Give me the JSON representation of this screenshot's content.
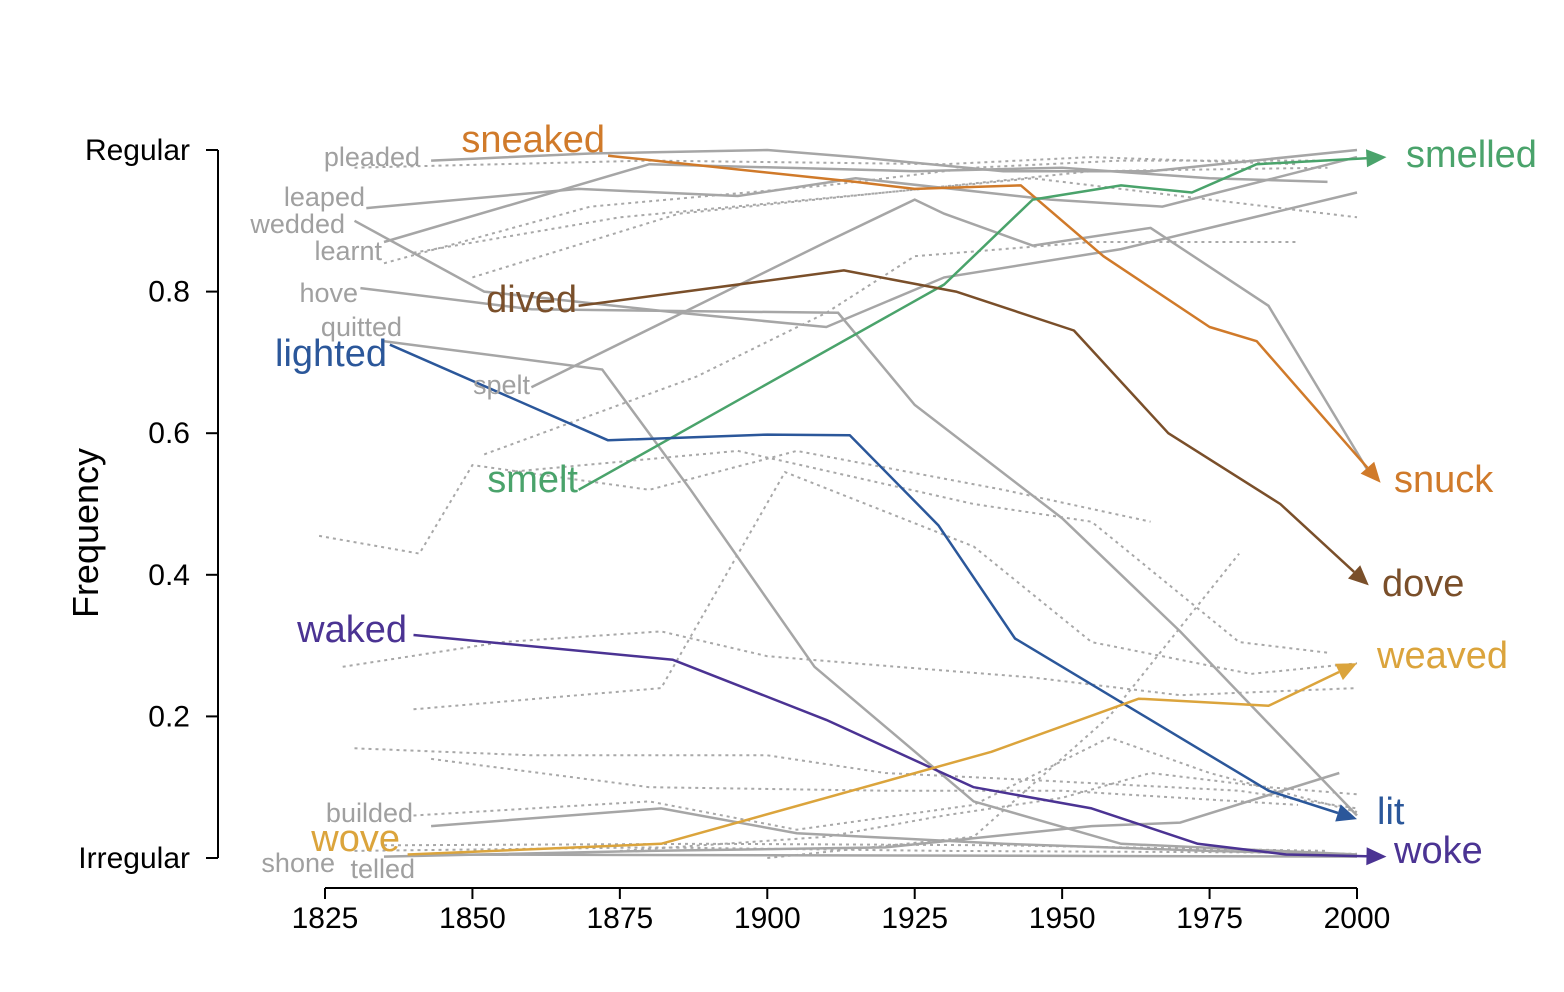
{
  "chart_data": {
    "type": "line",
    "title": "",
    "xlabel": "",
    "ylabel": "Frequency",
    "xlim": [
      1825,
      2000
    ],
    "ylim": [
      0,
      1
    ],
    "x_ticks": [
      "1825",
      "1850",
      "1875",
      "1900",
      "1925",
      "1950",
      "1975",
      "2000"
    ],
    "y_ticks": [
      {
        "value": 0,
        "label": "Irregular"
      },
      {
        "value": 0.2,
        "label": "0.2"
      },
      {
        "value": 0.4,
        "label": "0.4"
      },
      {
        "value": 0.6,
        "label": "0.6"
      },
      {
        "value": 0.8,
        "label": "0.8"
      },
      {
        "value": 1,
        "label": "Regular"
      }
    ],
    "grid": false,
    "legend": "none",
    "highlighted_series": [
      {
        "start_label": "sneaked",
        "end_label": "snuck",
        "color": "#d07a2a",
        "points": [
          [
            1873,
            0.992
          ],
          [
            1915,
            0.955
          ],
          [
            1925,
            0.945
          ],
          [
            1943,
            0.95
          ],
          [
            1957,
            0.85
          ],
          [
            1975,
            0.75
          ],
          [
            1983,
            0.73
          ],
          [
            2004,
            0.53
          ]
        ]
      },
      {
        "start_label": "smelt",
        "end_label": "smelled",
        "color": "#4aa36b",
        "points": [
          [
            1868,
            0.52
          ],
          [
            1930,
            0.81
          ],
          [
            1945,
            0.93
          ],
          [
            1960,
            0.95
          ],
          [
            1972,
            0.94
          ],
          [
            1983,
            0.98
          ],
          [
            2005,
            0.99
          ]
        ]
      },
      {
        "start_label": "dived",
        "end_label": "dove",
        "color": "#7a4f2a",
        "points": [
          [
            1868,
            0.78
          ],
          [
            1913,
            0.83
          ],
          [
            1932,
            0.8
          ],
          [
            1952,
            0.745
          ],
          [
            1968,
            0.6
          ],
          [
            1987,
            0.5
          ],
          [
            2002,
            0.385
          ]
        ]
      },
      {
        "start_label": "lighted",
        "end_label": "lit",
        "color": "#2b579a",
        "points": [
          [
            1836,
            0.725
          ],
          [
            1873,
            0.59
          ],
          [
            1900,
            0.598
          ],
          [
            1914,
            0.597
          ],
          [
            1929,
            0.47
          ],
          [
            1942,
            0.31
          ],
          [
            1985,
            0.095
          ],
          [
            2000,
            0.055
          ]
        ]
      },
      {
        "start_label": "waked",
        "end_label": "woke",
        "color": "#4b3393",
        "points": [
          [
            1840,
            0.315
          ],
          [
            1884,
            0.28
          ],
          [
            1910,
            0.195
          ],
          [
            1935,
            0.1
          ],
          [
            1955,
            0.07
          ],
          [
            1973,
            0.02
          ],
          [
            1988,
            0.005
          ],
          [
            2005,
            0.002
          ]
        ]
      },
      {
        "start_label": "wove",
        "end_label": "weaved",
        "color": "#dba43c",
        "points": [
          [
            1839,
            0.005
          ],
          [
            1882,
            0.02
          ],
          [
            1938,
            0.15
          ],
          [
            1963,
            0.225
          ],
          [
            1985,
            0.215
          ],
          [
            2000,
            0.275
          ]
        ]
      }
    ],
    "solid_gray_series": [
      {
        "start_label": "pleaded",
        "points": [
          [
            1843,
            0.985
          ],
          [
            1870,
            0.995
          ],
          [
            1900,
            1.0
          ],
          [
            1915,
            0.99
          ],
          [
            1940,
            0.97
          ],
          [
            1965,
            0.97
          ],
          [
            2000,
            1.0
          ]
        ]
      },
      {
        "start_label": "leaped",
        "points": [
          [
            1832,
            0.918
          ],
          [
            1868,
            0.945
          ],
          [
            1895,
            0.935
          ],
          [
            1915,
            0.96
          ],
          [
            1948,
            0.93
          ],
          [
            1967,
            0.92
          ],
          [
            2000,
            0.99
          ]
        ]
      },
      {
        "start_label": "wedded",
        "points": [
          [
            1830,
            0.9
          ],
          [
            1852,
            0.8
          ],
          [
            1885,
            0.77
          ],
          [
            1910,
            0.75
          ],
          [
            1930,
            0.82
          ],
          [
            1960,
            0.86
          ],
          [
            1975,
            0.89
          ],
          [
            2000,
            0.94
          ]
        ]
      },
      {
        "start_label": "learnt",
        "points": [
          [
            1835,
            0.87
          ],
          [
            1880,
            0.98
          ],
          [
            1925,
            0.97
          ],
          [
            1950,
            0.975
          ],
          [
            1975,
            0.96
          ],
          [
            1995,
            0.955
          ]
        ]
      },
      {
        "start_label": "hove",
        "points": [
          [
            1831,
            0.805
          ],
          [
            1860,
            0.775
          ],
          [
            1912,
            0.77
          ],
          [
            1925,
            0.64
          ],
          [
            1950,
            0.48
          ],
          [
            1970,
            0.32
          ],
          [
            1985,
            0.19
          ],
          [
            2000,
            0.06
          ]
        ]
      },
      {
        "start_label": "quitted",
        "points": [
          [
            1835,
            0.73
          ],
          [
            1872,
            0.69
          ],
          [
            1887,
            0.52
          ],
          [
            1908,
            0.27
          ],
          [
            1935,
            0.08
          ],
          [
            1960,
            0.02
          ],
          [
            2000,
            0.005
          ]
        ]
      },
      {
        "start_label": "spelt",
        "points": [
          [
            1860,
            0.665
          ],
          [
            1910,
            0.87
          ],
          [
            1925,
            0.93
          ],
          [
            1930,
            0.91
          ],
          [
            1945,
            0.865
          ],
          [
            1965,
            0.89
          ],
          [
            1985,
            0.78
          ],
          [
            2002,
            0.545
          ]
        ]
      },
      {
        "start_label": "builded",
        "points": [
          [
            1843,
            0.045
          ],
          [
            1882,
            0.07
          ],
          [
            1905,
            0.035
          ],
          [
            1940,
            0.02
          ],
          [
            1975,
            0.01
          ],
          [
            2000,
            0.005
          ]
        ]
      },
      {
        "start_label": "shone",
        "points": [
          [
            1835,
            0.002
          ],
          [
            1880,
            0.01
          ],
          [
            1920,
            0.015
          ],
          [
            1955,
            0.045
          ],
          [
            1970,
            0.05
          ],
          [
            1997,
            0.12
          ]
        ]
      },
      {
        "start_label": "telled",
        "points": [
          [
            1840,
            0.005
          ],
          [
            1900,
            0.004
          ],
          [
            1950,
            0.003
          ],
          [
            2000,
            0.002
          ]
        ]
      }
    ],
    "dashed_gray_series": [
      {
        "points": [
          [
            1830,
            0.975
          ],
          [
            1880,
            0.985
          ],
          [
            1930,
            0.98
          ],
          [
            1955,
            0.99
          ],
          [
            1990,
            0.98
          ]
        ]
      },
      {
        "points": [
          [
            1835,
            0.84
          ],
          [
            1870,
            0.92
          ],
          [
            1910,
            0.95
          ],
          [
            1935,
            0.975
          ],
          [
            1960,
            0.985
          ],
          [
            1995,
            0.985
          ]
        ]
      },
      {
        "points": [
          [
            1840,
            0.855
          ],
          [
            1875,
            0.905
          ],
          [
            1920,
            0.94
          ],
          [
            1955,
            0.97
          ],
          [
            1995,
            0.975
          ]
        ]
      },
      {
        "points": [
          [
            1850,
            0.82
          ],
          [
            1885,
            0.91
          ],
          [
            1920,
            0.94
          ],
          [
            1945,
            0.96
          ],
          [
            2000,
            0.905
          ]
        ]
      },
      {
        "points": [
          [
            1852,
            0.57
          ],
          [
            1888,
            0.68
          ],
          [
            1910,
            0.77
          ],
          [
            1925,
            0.85
          ],
          [
            1955,
            0.87
          ],
          [
            1990,
            0.87
          ]
        ]
      },
      {
        "points": [
          [
            1824,
            0.455
          ],
          [
            1841,
            0.43
          ],
          [
            1850,
            0.555
          ],
          [
            1880,
            0.52
          ],
          [
            1905,
            0.575
          ],
          [
            1940,
            0.52
          ],
          [
            1965,
            0.475
          ]
        ]
      },
      {
        "points": [
          [
            1856,
            0.545
          ],
          [
            1895,
            0.575
          ],
          [
            1935,
            0.5
          ],
          [
            1955,
            0.475
          ],
          [
            1980,
            0.305
          ],
          [
            1995,
            0.29
          ]
        ]
      },
      {
        "points": [
          [
            1828,
            0.27
          ],
          [
            1855,
            0.305
          ],
          [
            1882,
            0.32
          ],
          [
            1900,
            0.285
          ],
          [
            1922,
            0.27
          ],
          [
            1945,
            0.255
          ],
          [
            1970,
            0.23
          ],
          [
            2000,
            0.24
          ]
        ]
      },
      {
        "points": [
          [
            1840,
            0.21
          ],
          [
            1882,
            0.24
          ],
          [
            1903,
            0.545
          ],
          [
            1935,
            0.44
          ],
          [
            1955,
            0.305
          ],
          [
            1982,
            0.26
          ],
          [
            2000,
            0.275
          ]
        ]
      },
      {
        "points": [
          [
            1830,
            0.155
          ],
          [
            1860,
            0.145
          ],
          [
            1900,
            0.145
          ],
          [
            1920,
            0.12
          ],
          [
            1945,
            0.11
          ],
          [
            1980,
            0.095
          ],
          [
            2000,
            0.07
          ]
        ]
      },
      {
        "points": [
          [
            1843,
            0.14
          ],
          [
            1880,
            0.1
          ],
          [
            1920,
            0.095
          ],
          [
            1950,
            0.095
          ],
          [
            1990,
            0.075
          ]
        ]
      },
      {
        "points": [
          [
            1840,
            0.06
          ],
          [
            1880,
            0.08
          ],
          [
            1905,
            0.04
          ],
          [
            1935,
            0.075
          ],
          [
            1958,
            0.17
          ],
          [
            1975,
            0.12
          ],
          [
            2000,
            0.065
          ]
        ]
      },
      {
        "points": [
          [
            1875,
            0.01
          ],
          [
            1910,
            0.03
          ],
          [
            1930,
            0.06
          ],
          [
            1950,
            0.085
          ],
          [
            1965,
            0.12
          ],
          [
            1985,
            0.1
          ],
          [
            2000,
            0.09
          ]
        ]
      },
      {
        "points": [
          [
            1900,
            0.0
          ],
          [
            1935,
            0.03
          ],
          [
            1958,
            0.2
          ],
          [
            1980,
            0.43
          ]
        ]
      },
      {
        "points": [
          [
            1830,
            0.01
          ],
          [
            1880,
            0.015
          ],
          [
            1930,
            0.01
          ],
          [
            1980,
            0.008
          ],
          [
            2000,
            0.006
          ]
        ]
      },
      {
        "points": [
          [
            1835,
            0.018
          ],
          [
            1890,
            0.02
          ],
          [
            1940,
            0.018
          ],
          [
            1995,
            0.01
          ]
        ]
      }
    ]
  }
}
